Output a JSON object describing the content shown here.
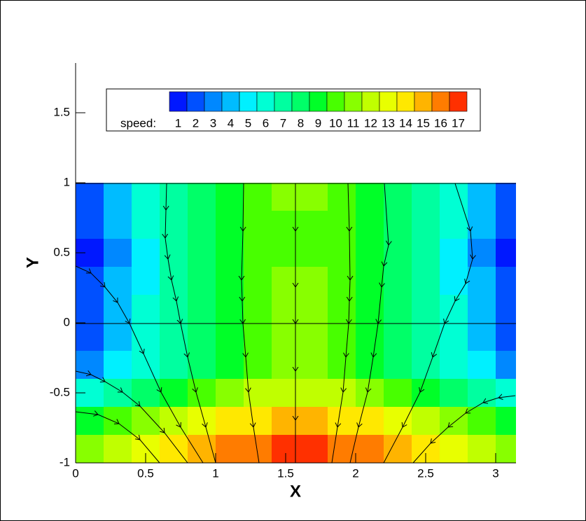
{
  "chart_data": {
    "type": "contour",
    "xlabel": "X",
    "ylabel": "Y",
    "xlim": [
      0,
      3.14159
    ],
    "ylim": [
      -1,
      1.86
    ],
    "xticks": [
      0,
      0.5,
      1,
      1.5,
      2,
      2.5,
      3
    ],
    "yticks": [
      -1,
      -0.5,
      0,
      0.5,
      1,
      1.5
    ],
    "legend": {
      "title": "speed:",
      "levels": [
        1,
        2,
        3,
        4,
        5,
        6,
        7,
        8,
        9,
        10,
        11,
        12,
        13,
        14,
        15,
        16,
        17
      ],
      "colors": [
        "#0018ff",
        "#0050ff",
        "#0088ff",
        "#00bcff",
        "#00f0ff",
        "#00ffd4",
        "#00ffa0",
        "#00ff68",
        "#00ff28",
        "#48ff00",
        "#88ff00",
        "#c0ff00",
        "#e8ff00",
        "#ffe800",
        "#ffb400",
        "#ff7c00",
        "#ff3000"
      ]
    },
    "field": {
      "x": [
        0.1,
        0.3,
        0.5,
        0.7,
        0.9,
        1.1,
        1.3,
        1.5,
        1.7,
        1.9,
        2.1,
        2.3,
        2.5,
        2.7,
        2.9,
        3.1
      ],
      "y": [
        0.9,
        0.7,
        0.5,
        0.3,
        0.1,
        -0.1,
        -0.3,
        -0.5,
        -0.7,
        -0.9
      ],
      "values": [
        [
          2,
          4,
          6,
          7,
          8,
          9,
          10,
          11,
          11,
          10,
          9,
          8,
          7,
          6,
          4,
          2
        ],
        [
          2,
          4,
          6,
          7,
          8,
          9,
          10,
          10,
          10,
          10,
          9,
          8,
          7,
          6,
          4,
          2
        ],
        [
          1,
          3,
          5,
          7,
          8,
          9,
          10,
          10,
          10,
          10,
          9,
          8,
          7,
          5,
          3,
          1
        ],
        [
          2,
          4,
          5,
          7,
          8,
          9,
          10,
          11,
          11,
          10,
          9,
          8,
          7,
          5,
          4,
          2
        ],
        [
          2,
          4,
          6,
          7,
          8,
          9,
          10,
          11,
          11,
          10,
          9,
          8,
          7,
          6,
          4,
          2
        ],
        [
          2,
          4,
          6,
          7,
          8,
          9,
          10,
          11,
          11,
          10,
          9,
          8,
          7,
          6,
          4,
          2
        ],
        [
          3,
          5,
          6,
          7,
          8,
          9,
          10,
          11,
          11,
          10,
          9,
          8,
          7,
          6,
          5,
          3
        ],
        [
          6,
          7,
          8,
          9,
          10,
          11,
          12,
          12,
          12,
          12,
          11,
          10,
          9,
          8,
          7,
          6
        ],
        [
          9,
          10,
          11,
          12,
          13,
          14,
          14,
          15,
          15,
          14,
          14,
          13,
          12,
          11,
          10,
          9
        ],
        [
          11,
          12,
          13,
          14,
          15,
          16,
          16,
          17,
          17,
          16,
          16,
          15,
          14,
          13,
          12,
          11
        ]
      ]
    }
  }
}
